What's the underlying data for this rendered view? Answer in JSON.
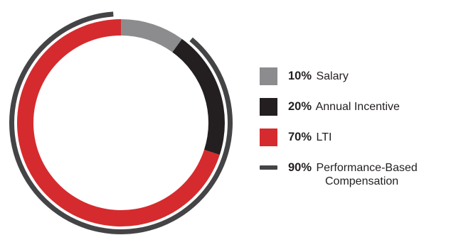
{
  "chart_data": {
    "type": "donut",
    "series": [
      {
        "name": "Salary",
        "value": 10,
        "label": "10%",
        "color": "#8c8c8e"
      },
      {
        "name": "Annual Incentive",
        "value": 20,
        "label": "20%",
        "color": "#231f20"
      },
      {
        "name": "LTI",
        "value": 70,
        "label": "70%",
        "color": "#d52b2e"
      }
    ],
    "outer_arc": {
      "name": "Performance-Based Compensation",
      "value": 90,
      "label": "90%",
      "color": "#444446"
    },
    "legend_placement": "right"
  },
  "legend": {
    "items": [
      {
        "pct": "10%",
        "text": "Salary",
        "color": "#8c8c8e"
      },
      {
        "pct": "20%",
        "text": "Annual Incentive",
        "color": "#231f20"
      },
      {
        "pct": "70%",
        "text": "LTI",
        "color": "#d52b2e"
      }
    ],
    "perf": {
      "pct": "90%",
      "text_line1": "Performance-Based",
      "text_line2": "Compensation",
      "color": "#444446"
    }
  }
}
